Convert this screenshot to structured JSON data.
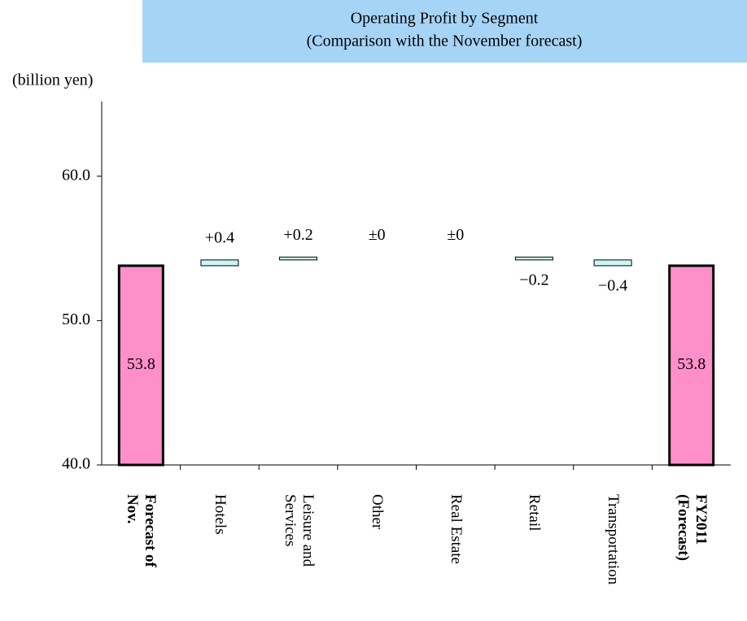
{
  "chart_data": {
    "type": "waterfall",
    "title": "Operating Profit by Segment",
    "subtitle": "(Comparison with the November forecast)",
    "y_label": "(billion yen)",
    "categories": [
      "Forecast of Nov.",
      "Hotels",
      "Leisure and Services",
      "Other",
      "Real Estate",
      "Retail",
      "Transportation",
      "FY2011 (Forecast)"
    ],
    "values": [
      53.8,
      0.4,
      0.2,
      0,
      0,
      -0.2,
      -0.4,
      53.8
    ],
    "value_labels": [
      "53.8",
      "+0.4",
      "+0.2",
      "±0",
      "±0",
      "−0.2",
      "−0.4",
      "53.8"
    ],
    "totals": [
      true,
      false,
      false,
      false,
      false,
      false,
      false,
      true
    ],
    "total_color": "#ff8fc8",
    "delta_color": "#ccf5f5",
    "title_box_color": "#a6d4f7",
    "ylim": [
      40,
      65
    ],
    "yticks": [
      {
        "value": 40,
        "label": "40.0"
      },
      {
        "value": 50,
        "label": "50.0"
      },
      {
        "value": 60,
        "label": "60.0"
      }
    ],
    "grid": false
  }
}
